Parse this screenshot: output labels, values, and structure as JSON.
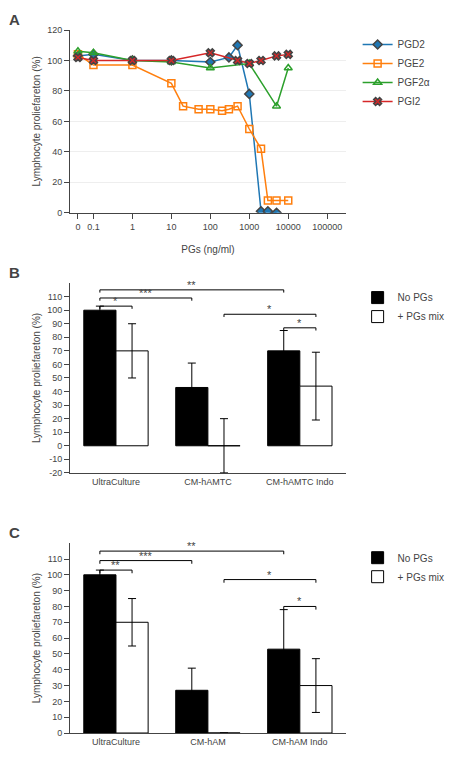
{
  "chart_data": [
    {
      "type": "line",
      "title": "A",
      "xlabel": "PGs (ng/ml)",
      "ylabel": "Lymphocyte proliefareton (%)",
      "log": "x",
      "xlim": [
        0.025,
        300000
      ],
      "xticks": [
        {
          "value": 0.04,
          "label": "0"
        },
        0.1,
        1,
        10,
        100,
        1000,
        10000,
        100000
      ],
      "ylim": [
        0,
        120
      ],
      "yticks": [
        0,
        20,
        40,
        60,
        80,
        100,
        120
      ],
      "grid": "y",
      "legend": "right",
      "series": [
        {
          "name": "PGD2",
          "marker": "diamond",
          "x": [
            0.04,
            0.1,
            1,
            10,
            100,
            300,
            500,
            1000,
            2000,
            3000,
            5000
          ],
          "values": [
            103,
            104,
            100,
            100,
            99,
            102,
            110,
            78,
            1,
            1,
            0
          ]
        },
        {
          "name": "PGE2",
          "marker": "square-open",
          "x": [
            0.04,
            0.1,
            1,
            10,
            20,
            50,
            100,
            200,
            300,
            500,
            1000,
            2000,
            3000,
            5000,
            10000
          ],
          "values": [
            104,
            97,
            97,
            85,
            70,
            68,
            68,
            67,
            68,
            70,
            55,
            42,
            8,
            8,
            8
          ]
        },
        {
          "name": "PGF2α",
          "marker": "triangle-up-open",
          "x": [
            0.04,
            0.1,
            1,
            10,
            100,
            1000,
            5000,
            10000
          ],
          "values": [
            106,
            105,
            100,
            99,
            95,
            98,
            70,
            95
          ]
        },
        {
          "name": "PGI2",
          "marker": "x",
          "x": [
            0.04,
            0.1,
            1,
            10,
            100,
            500,
            1000,
            2000,
            5000,
            10000
          ],
          "values": [
            102,
            100,
            100,
            100,
            105,
            100,
            98,
            100,
            103,
            104
          ]
        }
      ]
    },
    {
      "type": "bar",
      "title": "B",
      "ylabel": "Lymphocyte proliefareton (%)",
      "categories": [
        "UltraCulture",
        "CM-hAMTC",
        "CM-hAMTC Indo"
      ],
      "ylim": [
        -20,
        120
      ],
      "yticks": [
        -20,
        -10,
        0,
        10,
        20,
        30,
        40,
        50,
        60,
        70,
        80,
        90,
        100,
        110
      ],
      "grid": false,
      "legend": "right",
      "series": [
        {
          "name": "No PGs",
          "color": "black",
          "values": [
            100,
            43,
            70
          ],
          "errors": [
            3,
            18,
            15
          ]
        },
        {
          "name": "+ PGs mix",
          "color": "white",
          "values": [
            70,
            0,
            44
          ],
          "errors": [
            20,
            20,
            25
          ]
        }
      ],
      "annotations": [
        {
          "text": "*",
          "y": 103,
          "from": {
            "category": "UltraCulture",
            "series": "No PGs"
          },
          "to": {
            "category": "UltraCulture",
            "series": "+ PGs mix"
          }
        },
        {
          "text": "***",
          "y": 109,
          "from": {
            "category": "UltraCulture",
            "series": "No PGs"
          },
          "to": {
            "category": "CM-hAMTC",
            "series": "No PGs"
          }
        },
        {
          "text": "**",
          "y": 115,
          "from": {
            "category": "UltraCulture",
            "series": "No PGs"
          },
          "to": {
            "category": "CM-hAMTC Indo",
            "series": "No PGs"
          }
        },
        {
          "text": "*",
          "y": 97,
          "from": {
            "category": "CM-hAMTC",
            "series": "+ PGs mix"
          },
          "to": {
            "category": "CM-hAMTC Indo",
            "series": "+ PGs mix"
          }
        },
        {
          "text": "*",
          "y": 87,
          "from": {
            "category": "CM-hAMTC Indo",
            "series": "No PGs"
          },
          "to": {
            "category": "CM-hAMTC Indo",
            "series": "+ PGs mix"
          }
        }
      ]
    },
    {
      "type": "bar",
      "title": "C",
      "ylabel": "Lymphocyte proliefareton (%)",
      "categories": [
        "UltraCulture",
        "CM-hAM",
        "CM-hAM Indo"
      ],
      "ylim": [
        0,
        120
      ],
      "yticks": [
        0,
        10,
        20,
        30,
        40,
        50,
        60,
        70,
        80,
        90,
        100,
        110
      ],
      "grid": false,
      "legend": "right",
      "series": [
        {
          "name": "No PGs",
          "color": "black",
          "values": [
            100,
            27,
            53
          ],
          "errors": [
            3,
            14,
            25
          ]
        },
        {
          "name": "+ PGs mix",
          "color": "white",
          "values": [
            70,
            0,
            30
          ],
          "errors": [
            15,
            0,
            17
          ]
        }
      ],
      "annotations": [
        {
          "text": "**",
          "y": 103,
          "from": {
            "category": "UltraCulture",
            "series": "No PGs"
          },
          "to": {
            "category": "UltraCulture",
            "series": "+ PGs mix"
          }
        },
        {
          "text": "***",
          "y": 109,
          "from": {
            "category": "UltraCulture",
            "series": "No PGs"
          },
          "to": {
            "category": "CM-hAM",
            "series": "No PGs"
          }
        },
        {
          "text": "**",
          "y": 115,
          "from": {
            "category": "UltraCulture",
            "series": "No PGs"
          },
          "to": {
            "category": "CM-hAM Indo",
            "series": "No PGs"
          }
        },
        {
          "text": "*",
          "y": 97,
          "from": {
            "category": "CM-hAM",
            "series": "+ PGs mix"
          },
          "to": {
            "category": "CM-hAM Indo",
            "series": "+ PGs mix"
          }
        },
        {
          "text": "*",
          "y": 80,
          "from": {
            "category": "CM-hAM Indo",
            "series": "No PGs"
          },
          "to": {
            "category": "CM-hAM Indo",
            "series": "+ PGs mix"
          }
        }
      ]
    }
  ]
}
